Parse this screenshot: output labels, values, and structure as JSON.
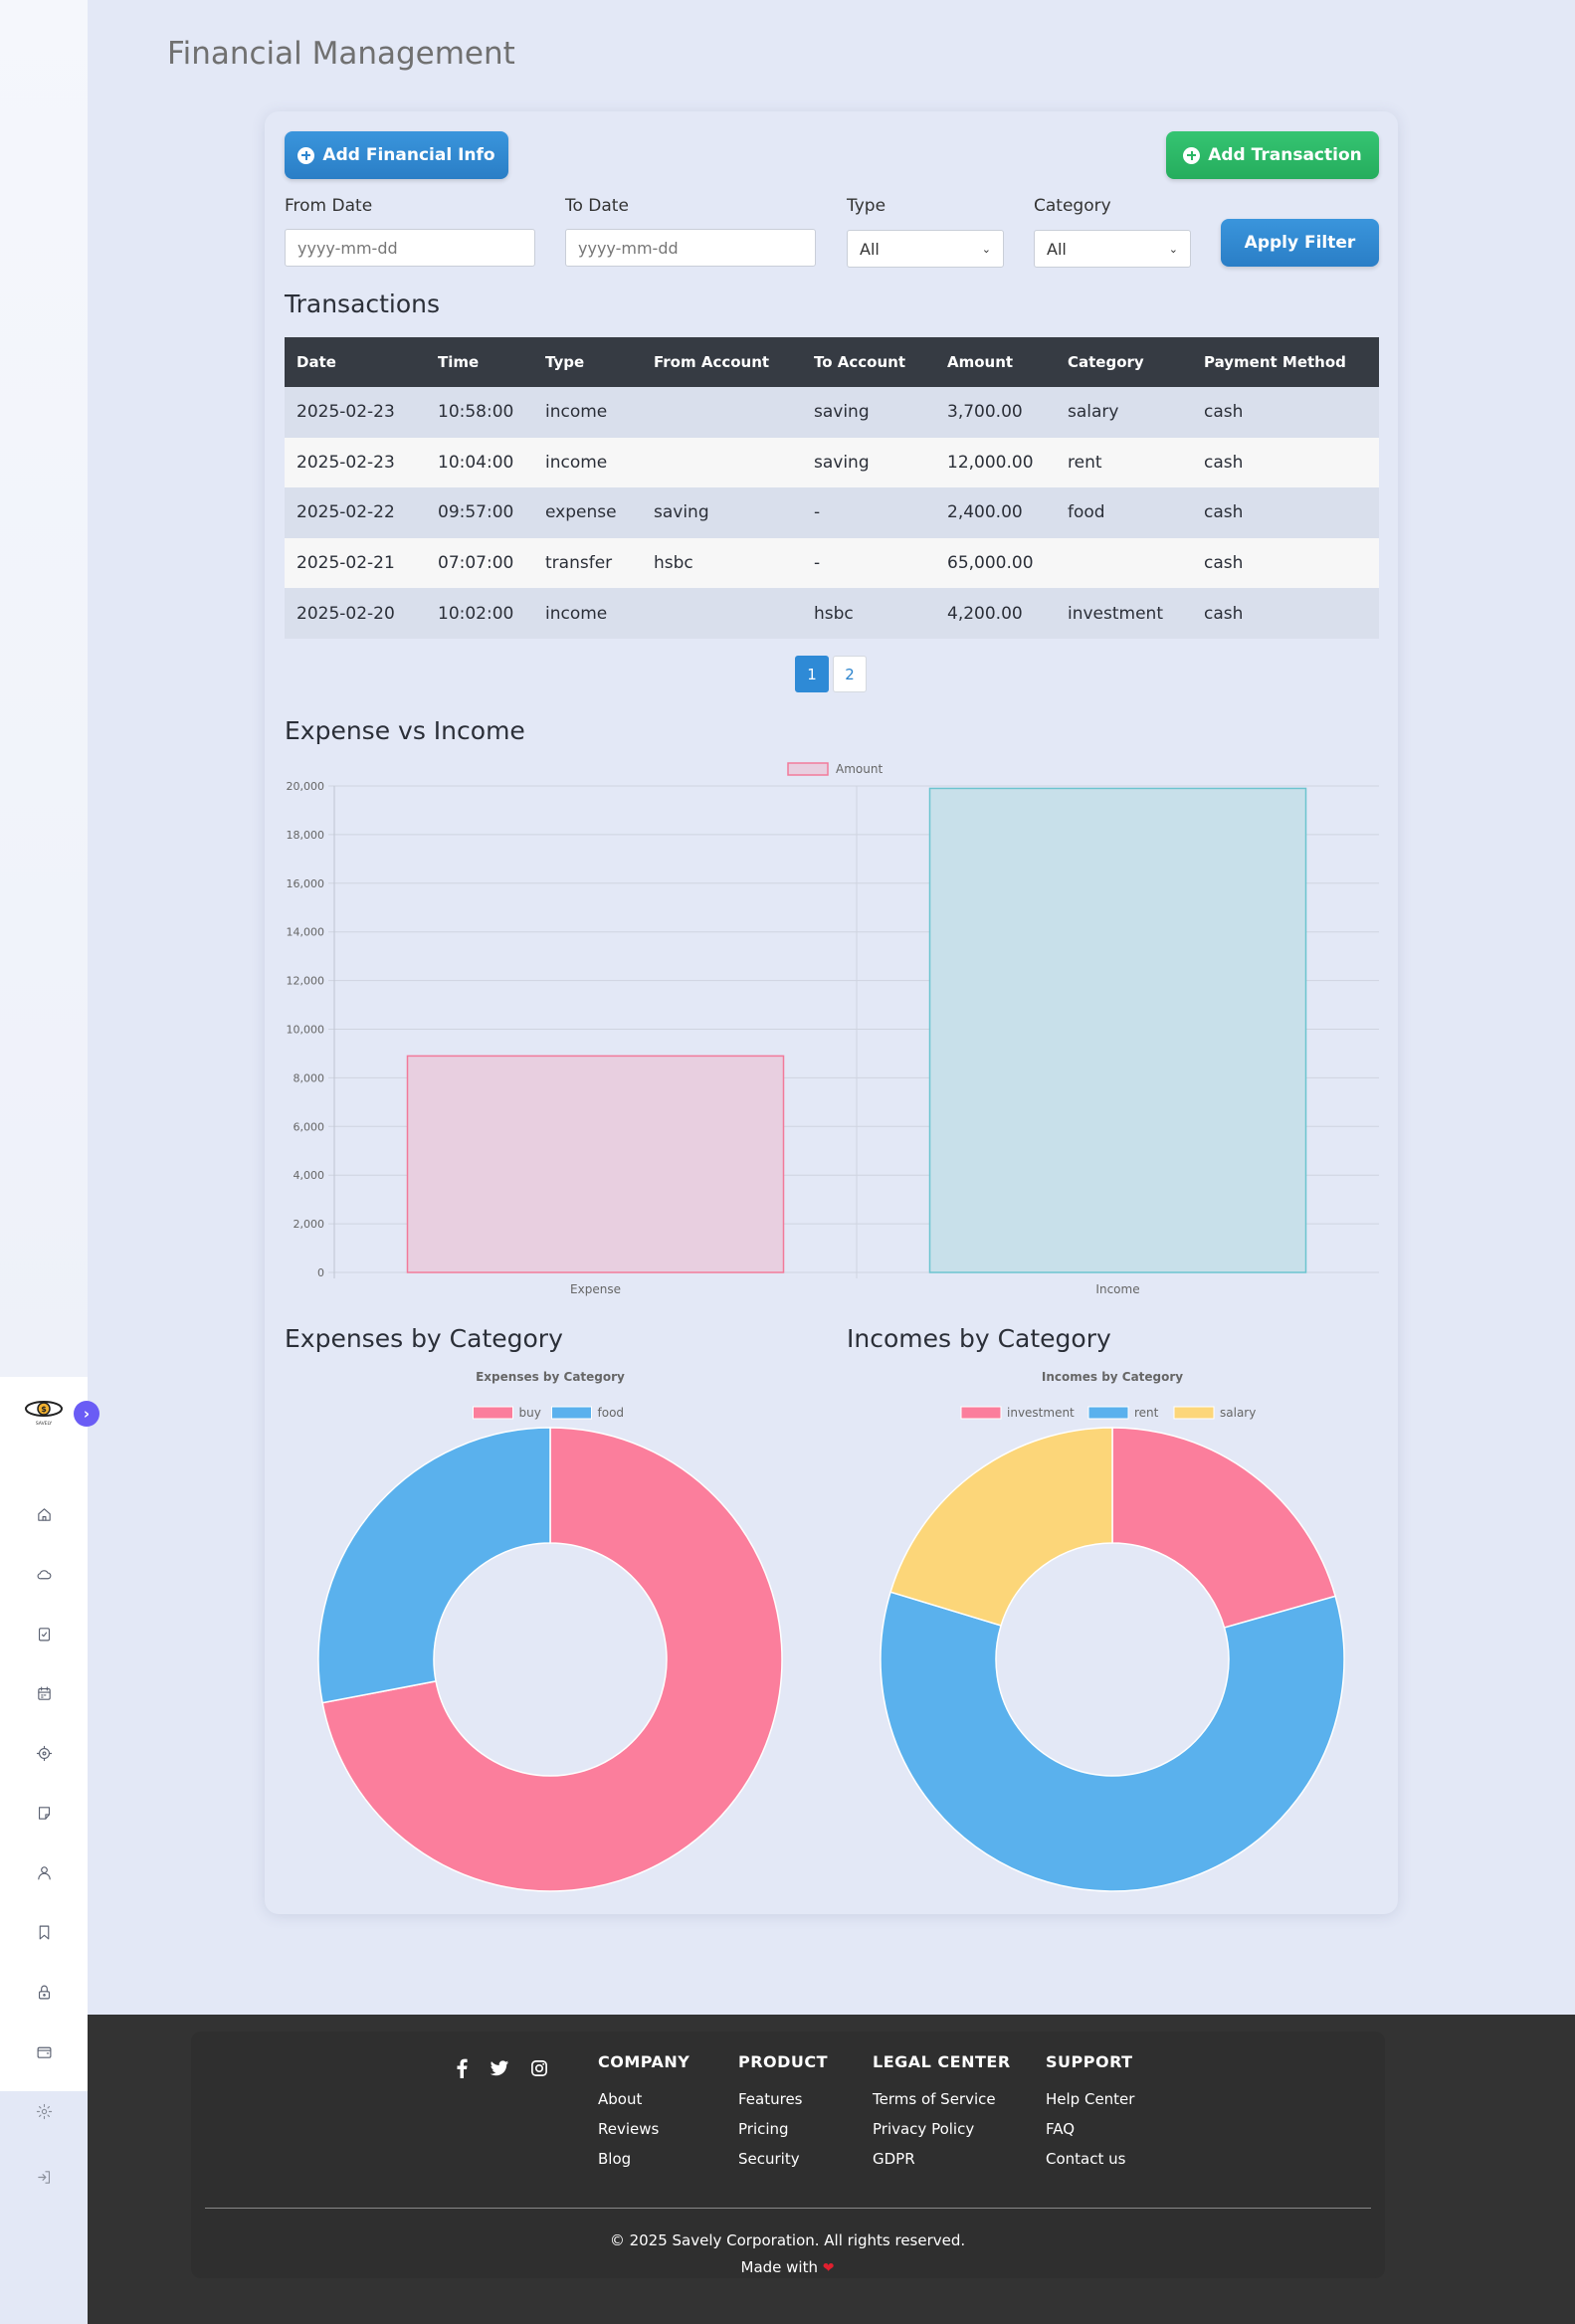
{
  "page": {
    "title": "Financial Management"
  },
  "actions": {
    "add_financial_info": "Add Financial Info",
    "add_transaction": "Add Transaction"
  },
  "filters": {
    "from_date_label": "From Date",
    "from_date_placeholder": "yyyy-mm-dd",
    "to_date_label": "To Date",
    "to_date_placeholder": "yyyy-mm-dd",
    "type_label": "Type",
    "type_value": "All",
    "category_label": "Category",
    "category_value": "All",
    "apply_label": "Apply Filter"
  },
  "transactions": {
    "title": "Transactions",
    "headers": [
      "Date",
      "Time",
      "Type",
      "From Account",
      "To Account",
      "Amount",
      "Category",
      "Payment Method"
    ],
    "rows": [
      [
        "2025-02-23",
        "10:58:00",
        "income",
        "",
        "saving",
        "3,700.00",
        "salary",
        "cash"
      ],
      [
        "2025-02-23",
        "10:04:00",
        "income",
        "",
        "saving",
        "12,000.00",
        "rent",
        "cash"
      ],
      [
        "2025-02-22",
        "09:57:00",
        "expense",
        "saving",
        "-",
        "2,400.00",
        "food",
        "cash"
      ],
      [
        "2025-02-21",
        "07:07:00",
        "transfer",
        "hsbc",
        "-",
        "65,000.00",
        "",
        "cash"
      ],
      [
        "2025-02-20",
        "10:02:00",
        "income",
        "",
        "hsbc",
        "4,200.00",
        "investment",
        "cash"
      ]
    ]
  },
  "pagination": {
    "pages": [
      "1",
      "2"
    ],
    "active": "1"
  },
  "chart_data": [
    {
      "type": "bar",
      "section_title": "Expense vs Income",
      "categories": [
        "Expense",
        "Income"
      ],
      "series": [
        {
          "name": "Amount",
          "values": [
            8900,
            19900
          ]
        }
      ],
      "colors": {
        "bar_fills": [
          "#e8cfe0",
          "#c8e0ea"
        ],
        "bar_borders": [
          "#f27a9a",
          "#6cc4cf"
        ]
      },
      "ylim": [
        0,
        20000
      ],
      "yticks": [
        "0",
        "2,000",
        "4,000",
        "6,000",
        "8,000",
        "10,000",
        "12,000",
        "14,000",
        "16,000",
        "18,000",
        "20,000"
      ],
      "grid": true,
      "legend": "top"
    },
    {
      "type": "pie",
      "section_title": "Expenses by Category",
      "title": "Expenses by Category",
      "labels": [
        "buy",
        "food"
      ],
      "values": [
        72,
        28
      ],
      "colors": [
        "#fb7e9c",
        "#5ab1ed"
      ],
      "legend": "top",
      "donut": true
    },
    {
      "type": "pie",
      "section_title": "Incomes by Category",
      "title": "Incomes by Category",
      "labels": [
        "investment",
        "rent",
        "salary"
      ],
      "values": [
        20.6,
        59.1,
        20.3
      ],
      "colors": [
        "#fb7e9c",
        "#5ab1ed",
        "#fcd679"
      ],
      "legend": "top",
      "donut": true
    }
  ],
  "footer": {
    "social": [
      "facebook-icon",
      "twitter-icon",
      "instagram-icon"
    ],
    "columns": [
      {
        "title": "COMPANY",
        "links": [
          "About",
          "Reviews",
          "Blog"
        ]
      },
      {
        "title": "PRODUCT",
        "links": [
          "Features",
          "Pricing",
          "Security"
        ]
      },
      {
        "title": "LEGAL CENTER",
        "links": [
          "Terms of Service",
          "Privacy Policy",
          "GDPR"
        ]
      },
      {
        "title": "SUPPORT",
        "links": [
          "Help Center",
          "FAQ",
          "Contact us"
        ]
      }
    ],
    "copyright": "© 2025 Savely Corporation. All rights reserved.",
    "made_with": "Made with"
  },
  "sidebar": {
    "logo_text": "SAVELY",
    "icons": [
      "home-icon",
      "cloud-icon",
      "clipboard-check-icon",
      "calendar-icon",
      "target-icon",
      "note-icon",
      "user-icon",
      "bookmark-icon",
      "lock-icon",
      "wallet-icon",
      "settings-icon",
      "logout-icon"
    ]
  }
}
